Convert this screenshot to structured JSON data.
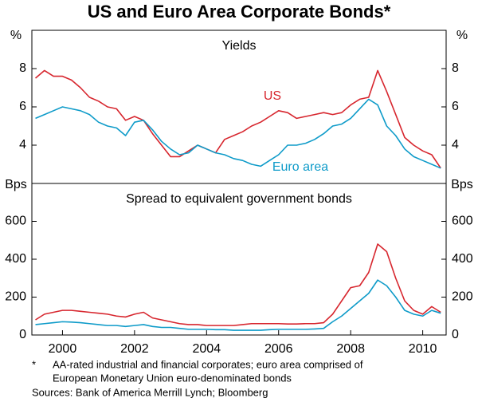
{
  "title": "US and Euro Area Corporate Bonds*",
  "footnote": {
    "marker": "*",
    "lines": [
      "AA-rated industrial and financial corporates; euro area comprised of",
      "European Monetary Union euro-denominated bonds"
    ]
  },
  "sources": "Sources: Bank of America Merrill Lynch; Bloomberg",
  "chart_data": [
    {
      "type": "line",
      "subtitle": "Yields",
      "unit": "%",
      "x": [
        1999.25,
        1999.5,
        1999.75,
        2000,
        2000.25,
        2000.5,
        2000.75,
        2001,
        2001.25,
        2001.5,
        2001.75,
        2002,
        2002.25,
        2002.5,
        2002.75,
        2003,
        2003.25,
        2003.5,
        2003.75,
        2004,
        2004.25,
        2004.5,
        2004.75,
        2005,
        2005.25,
        2005.5,
        2005.75,
        2006,
        2006.25,
        2006.5,
        2006.75,
        2007,
        2007.25,
        2007.5,
        2007.75,
        2008,
        2008.25,
        2008.5,
        2008.75,
        2009,
        2009.25,
        2009.5,
        2009.75,
        2010,
        2010.25,
        2010.5
      ],
      "xlim": [
        1999.15,
        2010.65
      ],
      "ylim": [
        2,
        10
      ],
      "yticks": [
        4,
        6,
        8
      ],
      "series": [
        {
          "name": "US",
          "color": "#d7262e",
          "values": [
            7.5,
            7.9,
            7.6,
            7.6,
            7.4,
            7.0,
            6.5,
            6.3,
            6.0,
            5.9,
            5.3,
            5.5,
            5.3,
            4.6,
            4.0,
            3.4,
            3.4,
            3.7,
            4.0,
            3.8,
            3.6,
            4.3,
            4.5,
            4.7,
            5.0,
            5.2,
            5.5,
            5.8,
            5.7,
            5.4,
            5.5,
            5.6,
            5.7,
            5.6,
            5.7,
            6.1,
            6.4,
            6.5,
            7.9,
            6.8,
            5.6,
            4.4,
            4.0,
            3.7,
            3.5,
            2.8
          ]
        },
        {
          "name": "Euro area",
          "color": "#0e9bc9",
          "values": [
            5.4,
            5.6,
            5.8,
            6.0,
            5.9,
            5.8,
            5.6,
            5.2,
            5.0,
            4.9,
            4.5,
            5.2,
            5.3,
            4.8,
            4.2,
            3.8,
            3.5,
            3.6,
            4.0,
            3.8,
            3.6,
            3.5,
            3.3,
            3.2,
            3.0,
            2.9,
            3.2,
            3.5,
            4.0,
            4.0,
            4.1,
            4.3,
            4.6,
            5.0,
            5.1,
            5.4,
            5.9,
            6.4,
            6.1,
            5.0,
            4.5,
            3.8,
            3.4,
            3.2,
            3.0,
            2.8
          ]
        }
      ]
    },
    {
      "type": "line",
      "subtitle": "Spread to equivalent government bonds",
      "unit": "Bps",
      "x": [
        1999.25,
        1999.5,
        1999.75,
        2000,
        2000.25,
        2000.5,
        2000.75,
        2001,
        2001.25,
        2001.5,
        2001.75,
        2002,
        2002.25,
        2002.5,
        2002.75,
        2003,
        2003.25,
        2003.5,
        2003.75,
        2004,
        2004.25,
        2004.5,
        2004.75,
        2005,
        2005.25,
        2005.5,
        2005.75,
        2006,
        2006.25,
        2006.5,
        2006.75,
        2007,
        2007.25,
        2007.5,
        2007.75,
        2008,
        2008.25,
        2008.5,
        2008.75,
        2009,
        2009.25,
        2009.5,
        2009.75,
        2010,
        2010.25,
        2010.5
      ],
      "xlim": [
        1999.15,
        2010.65
      ],
      "xticks": [
        2000,
        2002,
        2004,
        2006,
        2008,
        2010
      ],
      "ylim": [
        0,
        800
      ],
      "yticks": [
        0,
        200,
        400,
        600
      ],
      "series": [
        {
          "color": "#d7262e",
          "values": [
            80,
            110,
            120,
            130,
            130,
            125,
            120,
            115,
            110,
            100,
            95,
            110,
            120,
            90,
            80,
            70,
            60,
            55,
            55,
            50,
            50,
            50,
            50,
            55,
            60,
            60,
            60,
            60,
            58,
            58,
            60,
            60,
            65,
            110,
            180,
            250,
            260,
            330,
            480,
            440,
            300,
            180,
            130,
            110,
            150,
            120
          ]
        },
        {
          "color": "#0e9bc9",
          "values": [
            55,
            60,
            65,
            70,
            68,
            65,
            60,
            55,
            50,
            50,
            45,
            50,
            55,
            45,
            40,
            40,
            35,
            30,
            30,
            30,
            28,
            28,
            25,
            25,
            25,
            25,
            28,
            30,
            30,
            30,
            30,
            32,
            35,
            70,
            100,
            140,
            180,
            220,
            290,
            260,
            200,
            130,
            110,
            100,
            130,
            115
          ]
        }
      ]
    }
  ]
}
